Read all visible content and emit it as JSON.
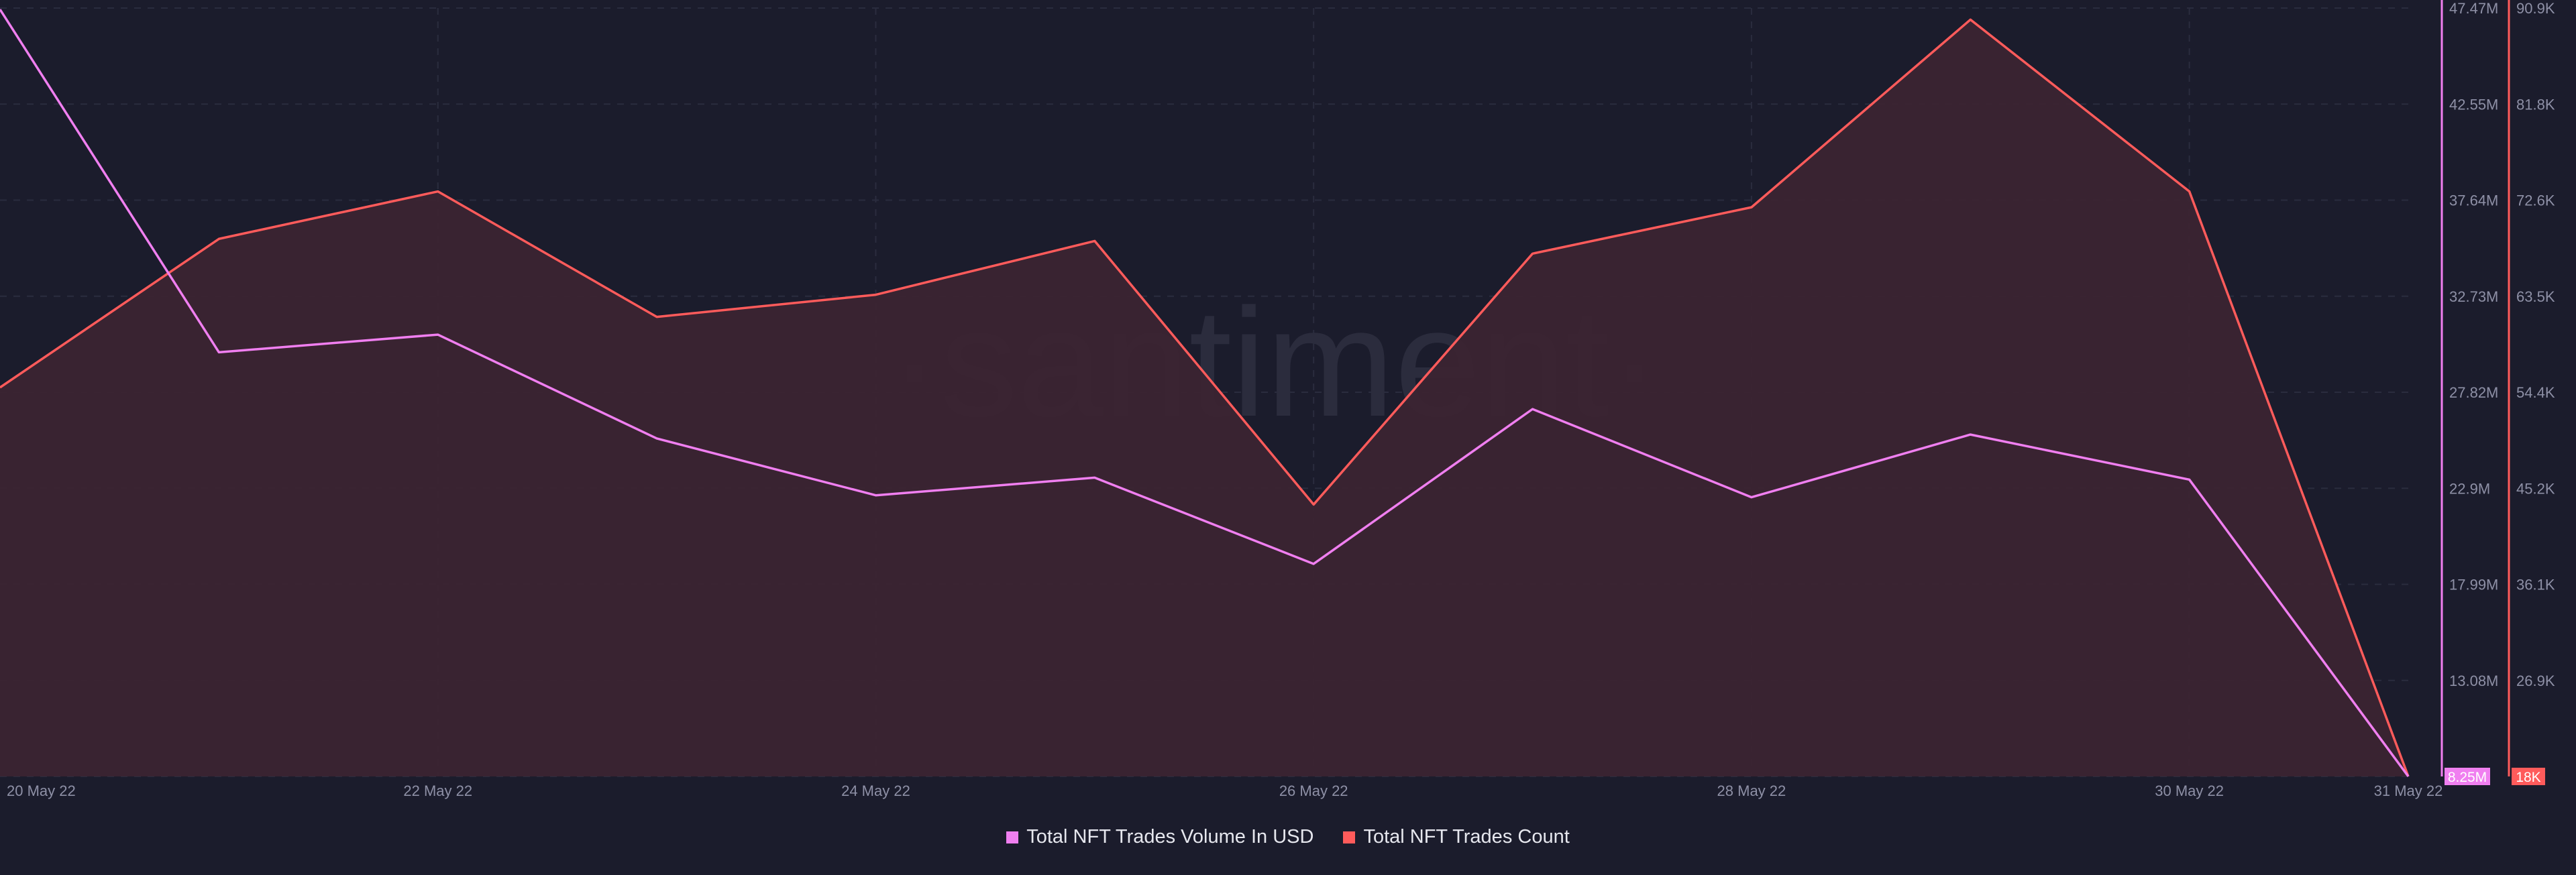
{
  "watermark": "·santiment·",
  "colors": {
    "background": "#1b1c2c",
    "grid": "#2a2c3e",
    "volume": "#f07ff0",
    "count": "#ff5b5b",
    "count_fill": "#3b2432",
    "watermark": "#2b2c3d",
    "tick_text": "#8e90a6"
  },
  "chart_data": {
    "type": "line",
    "x": [
      "20 May 22",
      "21 May 22",
      "22 May 22",
      "23 May 22",
      "24 May 22",
      "25 May 22",
      "26 May 22",
      "27 May 22",
      "28 May 22",
      "29 May 22",
      "30 May 22",
      "31 May 22"
    ],
    "x_tick_labels": [
      "20 May 22",
      "22 May 22",
      "24 May 22",
      "26 May 22",
      "28 May 22",
      "30 May 22",
      "31 May 22"
    ],
    "series": [
      {
        "name": "Total NFT Trades Volume In USD",
        "axis": "left",
        "color": "#f07ff0",
        "values": [
          47400000,
          29900000,
          30800000,
          25500000,
          22600000,
          23500000,
          19100000,
          27000000,
          22500000,
          25700000,
          23400000,
          8250000
        ]
      },
      {
        "name": "Total NFT Trades Count",
        "axis": "right",
        "color": "#ff5b5b",
        "fill": true,
        "values": [
          54900,
          69000,
          73500,
          61600,
          63700,
          68800,
          43800,
          67600,
          72000,
          89800,
          73500,
          18000
        ]
      }
    ],
    "y_axis_volume": {
      "min": 8250000,
      "max": 47470000,
      "tick_labels": [
        "47.47M",
        "42.55M",
        "37.64M",
        "32.73M",
        "27.82M",
        "22.9M",
        "17.99M",
        "13.08M",
        "8.25M"
      ],
      "current_label": "8.25M"
    },
    "y_axis_count": {
      "min": 18000,
      "max": 90900,
      "tick_labels": [
        "90.9K",
        "81.8K",
        "72.6K",
        "63.5K",
        "54.4K",
        "45.2K",
        "36.1K",
        "26.9K",
        "18K"
      ],
      "current_label": "18K"
    },
    "grid": true,
    "legend_position": "bottom-center"
  }
}
